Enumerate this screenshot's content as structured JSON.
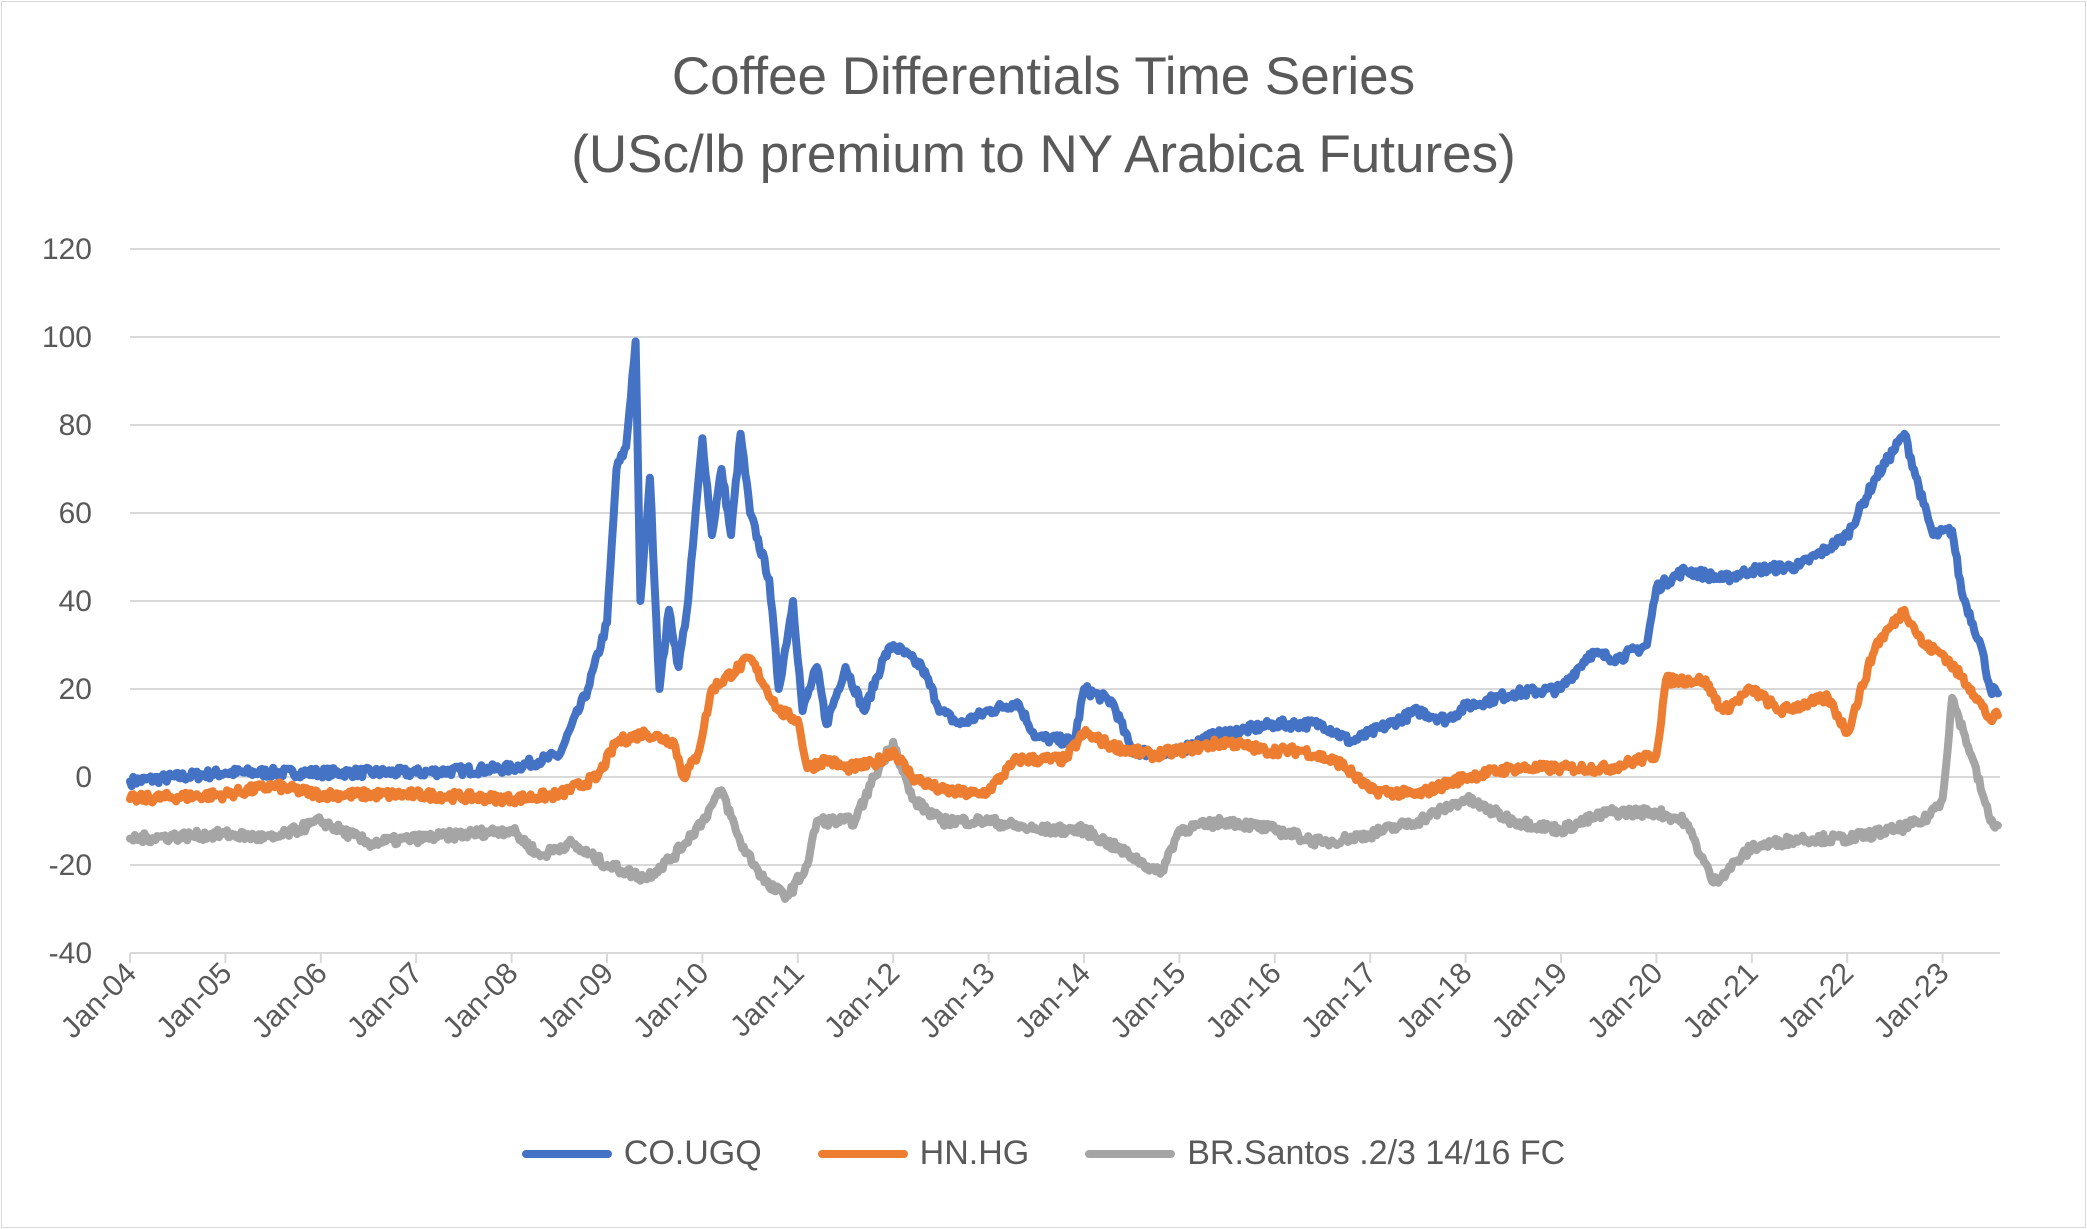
{
  "chart_data": {
    "type": "line",
    "title": "Coffee Differentials Time Series",
    "subtitle": "(USc/lb premium to NY Arabica Futures)",
    "xlabel": "",
    "ylabel": "",
    "ylim": [
      -40,
      120
    ],
    "yticks": [
      "-40",
      "-20",
      "0",
      "20",
      "40",
      "60",
      "80",
      "100",
      "120"
    ],
    "xlim": [
      2004,
      2023.6
    ],
    "xticks": [
      "Jan-04",
      "Jan-05",
      "Jan-06",
      "Jan-07",
      "Jan-08",
      "Jan-09",
      "Jan-10",
      "Jan-11",
      "Jan-12",
      "Jan-13",
      "Jan-14",
      "Jan-15",
      "Jan-16",
      "Jan-17",
      "Jan-18",
      "Jan-19",
      "Jan-20",
      "Jan-21",
      "Jan-22",
      "Jan-23"
    ],
    "grid": true,
    "legend": "bottom",
    "series": [
      {
        "name": "CO.UGQ",
        "color": "#4472c4",
        "points": [
          [
            2004,
            -1
          ],
          [
            2005,
            1
          ],
          [
            2006,
            1
          ],
          [
            2007,
            1
          ],
          [
            2008,
            2
          ],
          [
            2008.5,
            5
          ],
          [
            2008.8,
            20
          ],
          [
            2009,
            35
          ],
          [
            2009.1,
            70
          ],
          [
            2009.2,
            75
          ],
          [
            2009.3,
            99
          ],
          [
            2009.35,
            40
          ],
          [
            2009.45,
            68
          ],
          [
            2009.55,
            20
          ],
          [
            2009.65,
            38
          ],
          [
            2009.75,
            25
          ],
          [
            2009.85,
            40
          ],
          [
            2010,
            77
          ],
          [
            2010.1,
            55
          ],
          [
            2010.2,
            70
          ],
          [
            2010.3,
            55
          ],
          [
            2010.4,
            78
          ],
          [
            2010.5,
            60
          ],
          [
            2010.7,
            45
          ],
          [
            2010.8,
            20
          ],
          [
            2010.95,
            40
          ],
          [
            2011.05,
            15
          ],
          [
            2011.2,
            25
          ],
          [
            2011.3,
            12
          ],
          [
            2011.5,
            25
          ],
          [
            2011.7,
            15
          ],
          [
            2011.9,
            27
          ],
          [
            2012,
            30
          ],
          [
            2012.3,
            25
          ],
          [
            2012.5,
            15
          ],
          [
            2012.7,
            12
          ],
          [
            2013,
            15
          ],
          [
            2013.3,
            17
          ],
          [
            2013.5,
            9
          ],
          [
            2013.9,
            8
          ],
          [
            2014,
            20
          ],
          [
            2014.3,
            17
          ],
          [
            2014.5,
            6
          ],
          [
            2014.9,
            5
          ],
          [
            2015.3,
            9
          ],
          [
            2015.5,
            10
          ],
          [
            2016,
            12
          ],
          [
            2016.5,
            12
          ],
          [
            2016.8,
            8
          ],
          [
            2017,
            10
          ],
          [
            2017.5,
            15
          ],
          [
            2017.8,
            13
          ],
          [
            2018,
            16
          ],
          [
            2018.5,
            19
          ],
          [
            2019,
            20
          ],
          [
            2019.3,
            28
          ],
          [
            2019.6,
            27
          ],
          [
            2019.9,
            30
          ],
          [
            2020,
            43
          ],
          [
            2020.3,
            47
          ],
          [
            2020.7,
            45
          ],
          [
            2021,
            47
          ],
          [
            2021.5,
            48
          ],
          [
            2021.8,
            52
          ],
          [
            2022,
            55
          ],
          [
            2022.3,
            68
          ],
          [
            2022.6,
            78
          ],
          [
            2022.8,
            62
          ],
          [
            2022.9,
            55
          ],
          [
            2023.1,
            56
          ],
          [
            2023.2,
            42
          ],
          [
            2023.4,
            30
          ],
          [
            2023.5,
            20
          ],
          [
            2023.58,
            19
          ]
        ]
      },
      {
        "name": "HN.HG",
        "color": "#ed7d31",
        "points": [
          [
            2004,
            -5
          ],
          [
            2005,
            -4
          ],
          [
            2005.5,
            -2
          ],
          [
            2006,
            -4
          ],
          [
            2007,
            -4
          ],
          [
            2008,
            -5
          ],
          [
            2008.5,
            -4
          ],
          [
            2008.9,
            0
          ],
          [
            2009.1,
            8
          ],
          [
            2009.4,
            10
          ],
          [
            2009.7,
            8
          ],
          [
            2009.8,
            0
          ],
          [
            2009.95,
            5
          ],
          [
            2010.1,
            20
          ],
          [
            2010.5,
            27
          ],
          [
            2010.8,
            15
          ],
          [
            2011,
            13
          ],
          [
            2011.1,
            2
          ],
          [
            2011.3,
            4
          ],
          [
            2011.5,
            2
          ],
          [
            2011.8,
            3
          ],
          [
            2012,
            6
          ],
          [
            2012.2,
            0
          ],
          [
            2012.5,
            -3
          ],
          [
            2012.9,
            -4
          ],
          [
            2013,
            -3
          ],
          [
            2013.3,
            4
          ],
          [
            2013.8,
            4
          ],
          [
            2014,
            10
          ],
          [
            2014.3,
            7
          ],
          [
            2014.7,
            5
          ],
          [
            2015,
            6
          ],
          [
            2015.5,
            8
          ],
          [
            2015.9,
            6
          ],
          [
            2016.3,
            6
          ],
          [
            2016.7,
            3
          ],
          [
            2017,
            -3
          ],
          [
            2017.5,
            -4
          ],
          [
            2018,
            0
          ],
          [
            2018.5,
            2
          ],
          [
            2019,
            2
          ],
          [
            2019.5,
            2
          ],
          [
            2020,
            5
          ],
          [
            2020.1,
            22
          ],
          [
            2020.5,
            22
          ],
          [
            2020.7,
            15
          ],
          [
            2021,
            20
          ],
          [
            2021.3,
            15
          ],
          [
            2021.8,
            18
          ],
          [
            2022,
            10
          ],
          [
            2022.3,
            30
          ],
          [
            2022.6,
            38
          ],
          [
            2022.8,
            30
          ],
          [
            2023,
            28
          ],
          [
            2023.3,
            20
          ],
          [
            2023.5,
            13
          ],
          [
            2023.58,
            14
          ]
        ]
      },
      {
        "name": "BR.Santos .2/3 14/16 FC",
        "color": "#a5a5a5",
        "points": [
          [
            2004,
            -14
          ],
          [
            2005,
            -13
          ],
          [
            2005.5,
            -14
          ],
          [
            2006,
            -10
          ],
          [
            2006.5,
            -15
          ],
          [
            2007,
            -14
          ],
          [
            2008,
            -12
          ],
          [
            2008.3,
            -18
          ],
          [
            2008.6,
            -15
          ],
          [
            2009,
            -20
          ],
          [
            2009.4,
            -23
          ],
          [
            2009.7,
            -18
          ],
          [
            2010,
            -10
          ],
          [
            2010.2,
            -3
          ],
          [
            2010.4,
            -15
          ],
          [
            2010.7,
            -25
          ],
          [
            2010.9,
            -27
          ],
          [
            2011.1,
            -20
          ],
          [
            2011.2,
            -10
          ],
          [
            2011.6,
            -10
          ],
          [
            2011.8,
            0
          ],
          [
            2012,
            8
          ],
          [
            2012.2,
            -5
          ],
          [
            2012.5,
            -10
          ],
          [
            2013,
            -10
          ],
          [
            2013.5,
            -12
          ],
          [
            2014,
            -12
          ],
          [
            2014.5,
            -18
          ],
          [
            2014.8,
            -22
          ],
          [
            2015,
            -12
          ],
          [
            2015.5,
            -10
          ],
          [
            2016,
            -12
          ],
          [
            2016.5,
            -15
          ],
          [
            2017,
            -13
          ],
          [
            2017.5,
            -10
          ],
          [
            2018,
            -5
          ],
          [
            2018.5,
            -10
          ],
          [
            2019,
            -12
          ],
          [
            2019.5,
            -8
          ],
          [
            2020,
            -8
          ],
          [
            2020.3,
            -10
          ],
          [
            2020.6,
            -24
          ],
          [
            2021,
            -16
          ],
          [
            2021.5,
            -14
          ],
          [
            2022,
            -14
          ],
          [
            2022.5,
            -12
          ],
          [
            2022.8,
            -10
          ],
          [
            2023,
            -5
          ],
          [
            2023.1,
            18
          ],
          [
            2023.3,
            5
          ],
          [
            2023.5,
            -10
          ],
          [
            2023.58,
            -11
          ]
        ]
      }
    ]
  }
}
